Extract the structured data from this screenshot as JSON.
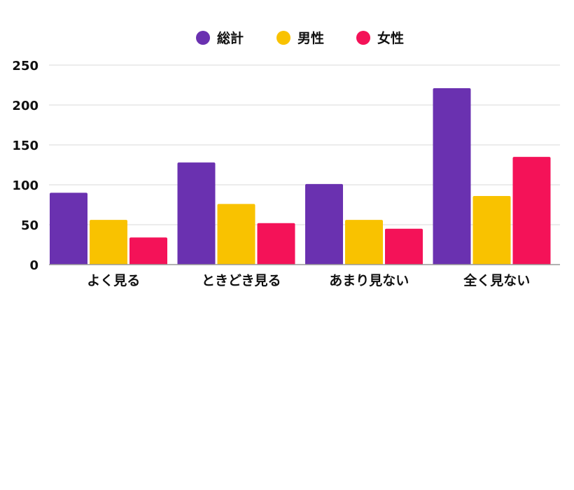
{
  "chart_data": {
    "type": "bar",
    "categories": [
      "よく見る",
      "ときどき見る",
      "あまり見ない",
      "全く見ない"
    ],
    "series": [
      {
        "name": "総計",
        "color": "#6a31b0",
        "values": [
          90,
          128,
          101,
          221
        ]
      },
      {
        "name": "男性",
        "color": "#f9c200",
        "values": [
          56,
          76,
          56,
          86
        ]
      },
      {
        "name": "女性",
        "color": "#f41258",
        "values": [
          34,
          52,
          45,
          135
        ]
      }
    ],
    "yticks": [
      0,
      50,
      100,
      150,
      200,
      250
    ],
    "ylim": [
      0,
      250
    ],
    "title": "",
    "xlabel": "",
    "ylabel": "",
    "grid": true,
    "legend_position": "top-center"
  }
}
